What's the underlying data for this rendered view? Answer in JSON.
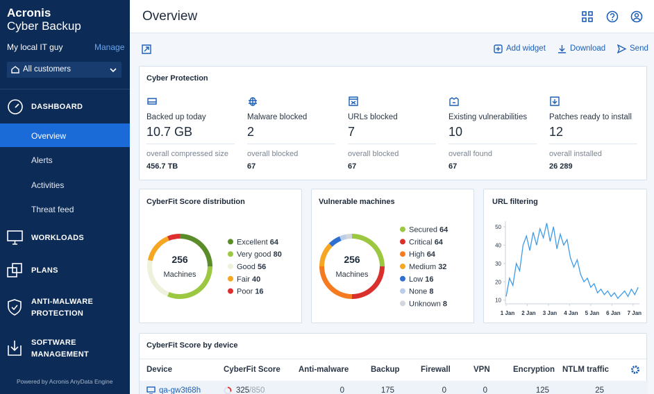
{
  "sidebar": {
    "brand": [
      "Acronis",
      "Cyber Backup"
    ],
    "user": "My local IT guy",
    "manage": "Manage",
    "customer": "All customers",
    "dashboard": {
      "label": "DASHBOARD",
      "items": [
        "Overview",
        "Alerts",
        "Activities",
        "Threat feed"
      ]
    },
    "sections": [
      [
        "WORKLOADS"
      ],
      [
        "PLANS"
      ],
      [
        "ANTI-MALWARE",
        "PROTECTION"
      ],
      [
        "SOFTWARE",
        "MANAGEMENT"
      ]
    ],
    "footer": "Powered by Acronis AnyData Engine"
  },
  "header": {
    "title": "Overview"
  },
  "toolbar": [
    "Add widget",
    "Download",
    "Send"
  ],
  "cyber_protection": {
    "title": "Cyber Protection",
    "stats": [
      {
        "label": "Backed up today",
        "value": "10.7 GB",
        "sub_label": "overall compressed size",
        "sub_value": "456.7 TB"
      },
      {
        "label": "Malware blocked",
        "value": "2",
        "sub_label": "overall blocked",
        "sub_value": "67"
      },
      {
        "label": "URLs blocked",
        "value": "7",
        "sub_label": "overall blocked",
        "sub_value": "67"
      },
      {
        "label": "Existing vulnerabilities",
        "value": "10",
        "sub_label": "overall found",
        "sub_value": "67"
      },
      {
        "label": "Patches ready to install",
        "value": "12",
        "sub_label": "overall installed",
        "sub_value": "26 289"
      }
    ]
  },
  "cyberfit": {
    "type": "donut",
    "title": "CyberFit Score distribution",
    "center_value": "256",
    "center_label": "Machines",
    "categories": [
      "Excellent",
      "Very good",
      "Good",
      "Fair",
      "Poor"
    ],
    "values": [
      64,
      80,
      56,
      40,
      16
    ],
    "colors": [
      "#5b8c2a",
      "#9bc840",
      "#eef1dc",
      "#f5a623",
      "#dd2f2f"
    ]
  },
  "vulnerable": {
    "type": "donut",
    "title": "Vulnerable machines",
    "center_value": "256",
    "center_label": "Machines",
    "categories": [
      "Secured",
      "Critical",
      "High",
      "Medium",
      "Low",
      "None",
      "Unknown"
    ],
    "values": [
      64,
      64,
      64,
      32,
      16,
      8,
      8
    ],
    "colors": [
      "#9bc840",
      "#d9302c",
      "#f47b20",
      "#f5a623",
      "#2f6fd1",
      "#bccdea",
      "#d3d6da"
    ]
  },
  "url_filtering": {
    "type": "line",
    "title": "URL filtering",
    "color": "#3d9be9",
    "x": [
      1,
      1.16,
      1.32,
      1.48,
      1.64,
      1.8,
      1.96,
      2.12,
      2.28,
      2.44,
      2.6,
      2.76,
      2.92,
      3.08,
      3.24,
      3.4,
      3.56,
      3.72,
      3.88,
      4.04,
      4.2,
      4.36,
      4.52,
      4.68,
      4.84,
      5,
      5.16,
      5.32,
      5.48,
      5.64,
      5.8,
      5.96,
      6.12,
      6.28,
      6.44,
      6.6,
      6.76,
      6.92,
      7.08,
      7.24
    ],
    "values": [
      12,
      22,
      18,
      30,
      26,
      40,
      45,
      37,
      47,
      40,
      49,
      44,
      52,
      42,
      50,
      38,
      46,
      40,
      43,
      33,
      28,
      32,
      24,
      20,
      22,
      17,
      19,
      14,
      16,
      13,
      15,
      12,
      14,
      11,
      13,
      15,
      12,
      16,
      13,
      17
    ],
    "xlim": [
      1,
      7.3
    ],
    "ylim": [
      8,
      53
    ],
    "yticks": [
      10,
      20,
      30,
      40,
      50
    ],
    "xticks": [
      {
        "value": 1,
        "label": "1 Jan"
      },
      {
        "value": 2,
        "label": "2 Jan"
      },
      {
        "value": 3,
        "label": "3 Jan"
      },
      {
        "value": 4,
        "label": "4 Jan"
      },
      {
        "value": 5,
        "label": "5 Jan"
      },
      {
        "value": 6,
        "label": "6 Jan"
      },
      {
        "value": 7,
        "label": "7 Jan"
      }
    ]
  },
  "device_table": {
    "title": "CyberFit Score by device",
    "columns": [
      "Device",
      "CyberFit Score",
      "Anti-malware",
      "Backup",
      "Firewall",
      "VPN",
      "Encryption",
      "NTLM traffic"
    ],
    "rows": [
      {
        "device": "qa-gw3t68h",
        "score": "325",
        "score_max": "/850",
        "cells": [
          "0",
          "175",
          "0",
          "0",
          "125",
          "25"
        ]
      }
    ]
  }
}
